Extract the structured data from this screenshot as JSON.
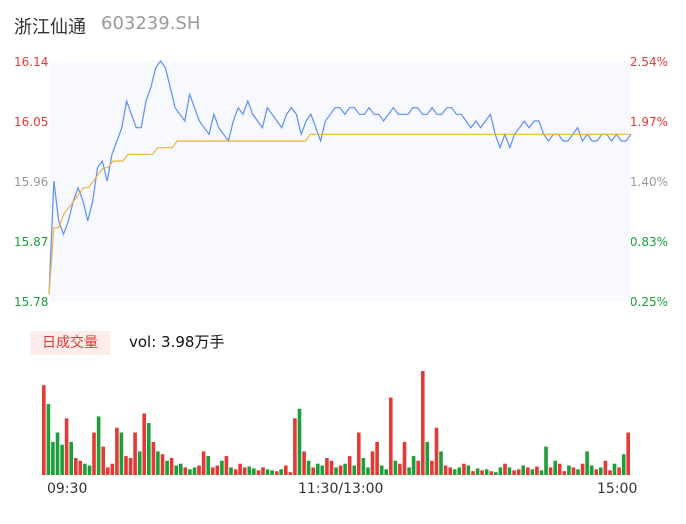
{
  "stock": {
    "name": "浙江仙通",
    "code": "603239.SH"
  },
  "y_labels_left": [
    "16.14",
    "16.05",
    "15.96",
    "15.87",
    "15.78"
  ],
  "y_labels_right": [
    "2.54%",
    "1.97%",
    "1.40%",
    "0.83%",
    "0.25%"
  ],
  "y_label_colors": [
    "#e53935",
    "#e53935",
    "#999999",
    "#1e9e3a",
    "#1e9e3a"
  ],
  "volume": {
    "badge": "日成交量",
    "label": "vol: 3.98万手"
  },
  "x_labels": [
    "09:30",
    "11:30/13:00",
    "15:00"
  ],
  "colors": {
    "price": "#5b8ff9",
    "avg": "#f5b23d",
    "up": "#e53935",
    "down": "#1e9e3a",
    "area": "#f7f9fe"
  },
  "chart_data": {
    "type": "line",
    "title": "",
    "xlabel": "",
    "ylabel": "",
    "ylim": [
      15.78,
      16.14
    ],
    "y2lim": [
      0.25,
      2.54
    ],
    "x_ticks": [
      "09:30",
      "11:30/13:00",
      "15:00"
    ],
    "series": [
      {
        "values": [
          15.79,
          15.96,
          15.9,
          15.88,
          15.9,
          15.93,
          15.95,
          15.93,
          15.9,
          15.93,
          15.98,
          15.99,
          15.96,
          16.0,
          16.02,
          16.04,
          16.08,
          16.06,
          16.04,
          16.04,
          16.08,
          16.1,
          16.13,
          16.14,
          16.13,
          16.1,
          16.07,
          16.06,
          16.05,
          16.09,
          16.07,
          16.05,
          16.04,
          16.03,
          16.06,
          16.04,
          16.03,
          16.02,
          16.05,
          16.07,
          16.06,
          16.08,
          16.06,
          16.05,
          16.04,
          16.07,
          16.06,
          16.05,
          16.04,
          16.06,
          16.07,
          16.06,
          16.03,
          16.05,
          16.06,
          16.04,
          16.02,
          16.05,
          16.06,
          16.07,
          16.07,
          16.06,
          16.07,
          16.07,
          16.06,
          16.06,
          16.07,
          16.06,
          16.06,
          16.05,
          16.06,
          16.07,
          16.06,
          16.06,
          16.06,
          16.07,
          16.07,
          16.06,
          16.06,
          16.07,
          16.06,
          16.06,
          16.07,
          16.07,
          16.06,
          16.06,
          16.05,
          16.04,
          16.05,
          16.04,
          16.05,
          16.06,
          16.03,
          16.01,
          16.03,
          16.01,
          16.03,
          16.04,
          16.05,
          16.04,
          16.05,
          16.05,
          16.03,
          16.02,
          16.03,
          16.03,
          16.02,
          16.02,
          16.03,
          16.04,
          16.02,
          16.03,
          16.02,
          16.02,
          16.03,
          16.03,
          16.02,
          16.03,
          16.02,
          16.02,
          16.03
        ],
        "color": "#5b8ff9"
      },
      {
        "values": [
          15.79,
          15.89,
          15.89,
          15.91,
          15.92,
          15.93,
          15.94,
          15.95,
          15.95,
          15.96,
          15.97,
          15.98,
          15.98,
          15.99,
          15.99,
          15.99,
          16.0,
          16.0,
          16.0,
          16.0,
          16.0,
          16.0,
          16.01,
          16.01,
          16.01,
          16.01,
          16.02,
          16.02,
          16.02,
          16.02,
          16.02,
          16.02,
          16.02,
          16.02,
          16.02,
          16.02,
          16.02,
          16.02,
          16.02,
          16.02,
          16.02,
          16.02,
          16.02,
          16.02,
          16.02,
          16.02,
          16.02,
          16.02,
          16.02,
          16.02,
          16.02,
          16.02,
          16.02,
          16.03,
          16.03,
          16.03,
          16.03,
          16.03,
          16.03,
          16.03,
          16.03,
          16.03,
          16.03,
          16.03,
          16.03,
          16.03,
          16.03,
          16.03,
          16.03,
          16.03,
          16.03,
          16.03,
          16.03,
          16.03,
          16.03,
          16.03,
          16.03,
          16.03,
          16.03,
          16.03,
          16.03,
          16.03,
          16.03,
          16.03,
          16.03,
          16.03,
          16.03,
          16.03,
          16.03,
          16.03,
          16.03,
          16.03,
          16.03,
          16.03,
          16.03,
          16.03,
          16.03,
          16.03,
          16.03,
          16.03,
          16.03,
          16.03,
          16.03,
          16.03,
          16.03,
          16.03,
          16.03,
          16.03,
          16.03,
          16.03,
          16.03,
          16.03,
          16.03,
          16.03,
          16.03,
          16.03,
          16.03,
          16.03,
          16.03
        ],
        "color": "#f5b23d"
      }
    ],
    "volume": [
      95,
      75,
      35,
      45,
      32,
      60,
      35,
      18,
      15,
      12,
      10,
      45,
      62,
      30,
      8,
      12,
      50,
      45,
      20,
      18,
      45,
      25,
      65,
      55,
      35,
      25,
      22,
      15,
      18,
      10,
      12,
      8,
      6,
      8,
      10,
      25,
      20,
      8,
      10,
      15,
      20,
      8,
      6,
      12,
      8,
      9,
      7,
      5,
      8,
      6,
      5,
      4,
      6,
      10,
      3,
      60,
      70,
      25,
      15,
      8,
      12,
      10,
      18,
      15,
      8,
      10,
      12,
      20,
      10,
      45,
      18,
      8,
      25,
      35,
      10,
      6,
      82,
      15,
      12,
      35,
      8,
      20,
      15,
      110,
      35,
      15,
      50,
      25,
      10,
      8,
      6,
      8,
      12,
      10,
      4,
      7,
      5,
      6,
      4,
      3,
      8,
      12,
      8,
      5,
      6,
      10,
      8,
      6,
      9,
      5,
      30,
      8,
      15,
      12,
      4,
      10,
      8,
      6,
      12,
      25,
      10,
      6,
      8,
      15,
      5,
      12,
      8,
      22,
      45
    ],
    "volume_direction": [
      "up",
      "down",
      "down",
      "down",
      "down",
      "up",
      "down",
      "up",
      "up",
      "down",
      "down",
      "up",
      "down",
      "up",
      "up",
      "up",
      "up",
      "down",
      "up",
      "up",
      "up",
      "down",
      "up",
      "down",
      "up",
      "down",
      "up",
      "down",
      "up",
      "down",
      "down",
      "up",
      "down",
      "down",
      "up",
      "up",
      "down",
      "up",
      "up",
      "down",
      "up",
      "down",
      "up",
      "up",
      "up",
      "down",
      "down",
      "up",
      "up",
      "down",
      "down",
      "up",
      "down",
      "up",
      "up",
      "up",
      "down",
      "up",
      "down",
      "up",
      "down",
      "down",
      "up",
      "up",
      "down",
      "up",
      "down",
      "up",
      "down",
      "up",
      "down",
      "down",
      "up",
      "up",
      "down",
      "down",
      "up",
      "down",
      "up",
      "up",
      "down",
      "down",
      "up",
      "up",
      "down",
      "up",
      "up",
      "down",
      "up",
      "up",
      "down",
      "down",
      "up",
      "down",
      "up",
      "down",
      "up",
      "down",
      "up",
      "down",
      "down",
      "up",
      "down",
      "up",
      "up",
      "down",
      "up",
      "down",
      "up",
      "down",
      "down",
      "up",
      "down",
      "up",
      "up",
      "down",
      "up",
      "down",
      "up",
      "down",
      "down",
      "up",
      "down",
      "up",
      "up",
      "down",
      "up",
      "down",
      "up"
    ]
  }
}
